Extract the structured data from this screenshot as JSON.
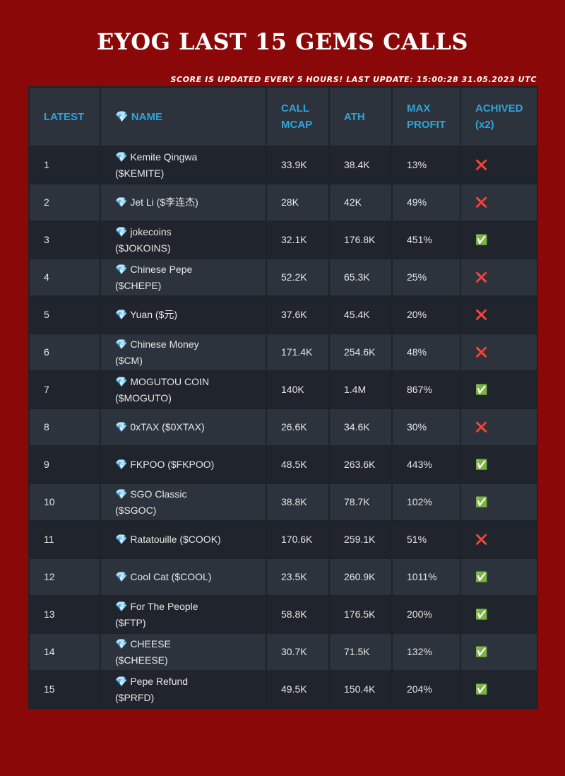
{
  "header": {
    "title": "EYOG LAST 15 GEMS CALLS",
    "subtitle": "SCORE IS UPDATED EVERY 5 HOURS! LAST UPDATE: 15:00:28 31.05.2023 UTC"
  },
  "table": {
    "columns": [
      "LATEST",
      "💎 NAME",
      "CALL MCAP",
      "ATH",
      "MAX PROFIT",
      "ACHIVED (x2)"
    ],
    "rows": [
      [
        "1",
        "💎 Kemite Qingwa ($KEMITE)",
        "33.9K",
        "38.4K",
        "13%",
        "❌"
      ],
      [
        "2",
        "💎 Jet Li ($李连杰)",
        "28K",
        "42K",
        "49%",
        "❌"
      ],
      [
        "3",
        "💎 jokecoins ($JOKOINS)",
        "32.1K",
        "176.8K",
        "451%",
        "✅"
      ],
      [
        "4",
        "💎 Chinese Pepe ($CHEPE)",
        "52.2K",
        "65.3K",
        "25%",
        "❌"
      ],
      [
        "5",
        "💎 Yuan ($元)",
        "37.6K",
        "45.4K",
        "20%",
        "❌"
      ],
      [
        "6",
        "💎 Chinese Money ($CM)",
        "171.4K",
        "254.6K",
        "48%",
        "❌"
      ],
      [
        "7",
        "💎 MOGUTOU COIN ($MOGUTO)",
        "140K",
        "1.4M",
        "867%",
        "✅"
      ],
      [
        "8",
        "💎 0xTAX ($0XTAX)",
        "26.6K",
        "34.6K",
        "30%",
        "❌"
      ],
      [
        "9",
        "💎 FKPOO ($FKPOO)",
        "48.5K",
        "263.6K",
        "443%",
        "✅"
      ],
      [
        "10",
        "💎 SGO Classic ($SGOC)",
        "38.8K",
        "78.7K",
        "102%",
        "✅"
      ],
      [
        "11",
        "💎 Ratatouille ($COOK)",
        "170.6K",
        "259.1K",
        "51%",
        "❌"
      ],
      [
        "12",
        "💎 Cool Cat ($COOL)",
        "23.5K",
        "260.9K",
        "1011%",
        "✅"
      ],
      [
        "13",
        "💎 For The People ($FTP)",
        "58.8K",
        "176.5K",
        "200%",
        "✅"
      ],
      [
        "14",
        "💎 CHEESE ($CHEESE)",
        "30.7K",
        "71.5K",
        "132%",
        "✅"
      ],
      [
        "15",
        "💎 Pepe Refund ($PRFD)",
        "49.5K",
        "150.4K",
        "204%",
        "✅"
      ]
    ]
  }
}
